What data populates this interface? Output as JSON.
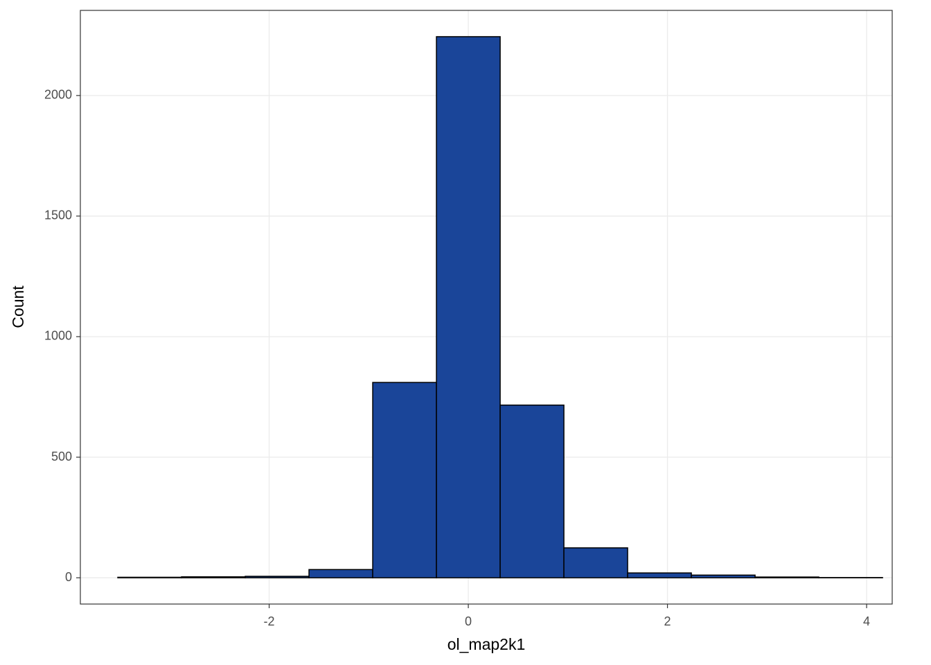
{
  "chart_data": {
    "type": "histogram",
    "x_label": "ol_map2k1",
    "y_label": "Count",
    "bins": [
      -3.52,
      -2.88,
      -2.24,
      -1.6,
      -0.96,
      -0.32,
      0.32,
      0.96,
      1.6,
      2.24,
      2.88,
      3.52,
      4.16
    ],
    "values": [
      2,
      4,
      6,
      34,
      810,
      2244,
      716,
      124,
      20,
      11,
      3,
      1
    ],
    "color": "#1a4599",
    "edge_color": "#000000",
    "xlim": [
      -3.896,
      4.257
    ],
    "ylim": [
      -109,
      2353
    ],
    "xticks": [
      -2,
      0,
      2,
      4
    ],
    "yticks": [
      0,
      500,
      1000,
      1500,
      2000
    ],
    "grid": true
  }
}
